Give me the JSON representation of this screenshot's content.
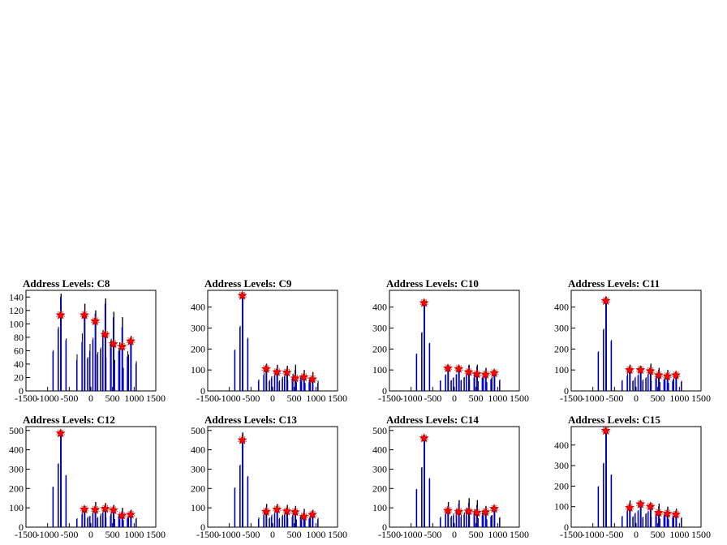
{
  "colors": {
    "background": "#ffffff",
    "raw": "#000000",
    "fit": "#0000ff",
    "peak": "#ff0000"
  },
  "chart_data": [
    {
      "type": "bar",
      "title": "Address Levels: C8",
      "xlim": [
        -1500,
        1500
      ],
      "ylim": [
        0,
        150
      ],
      "xticks": [
        "-1500",
        "-1000",
        "-500",
        "0",
        "500",
        "1000",
        "1500"
      ],
      "yticks": [
        "0",
        "20",
        "40",
        "60",
        "80",
        "100",
        "120",
        "140"
      ],
      "ytick_values": [
        0,
        20,
        40,
        60,
        80,
        100,
        120,
        140
      ],
      "series": [
        {
          "x": [
            -700,
            -150,
            100,
            330,
            520,
            720,
            920
          ],
          "values": [
            145,
            130,
            120,
            138,
            118,
            110,
            82
          ]
        },
        {
          "x": [
            -700,
            -150,
            100,
            330,
            520,
            720,
            920
          ],
          "values": [
            140,
            110,
            115,
            130,
            110,
            95,
            75
          ]
        }
      ],
      "peaks": {
        "x": [
          -700,
          -150,
          100,
          330,
          520,
          720,
          920
        ],
        "y": [
          113,
          113,
          104,
          84,
          70,
          66,
          74
        ]
      }
    },
    {
      "type": "bar",
      "title": "Address Levels: C9",
      "xlim": [
        -1500,
        1500
      ],
      "ylim": [
        0,
        480
      ],
      "xticks": [
        "-1500",
        "-1000",
        "-500",
        "0",
        "500",
        "1000",
        "1500"
      ],
      "yticks": [
        "0",
        "100",
        "200",
        "300",
        "400"
      ],
      "ytick_values": [
        0,
        100,
        200,
        300,
        400
      ],
      "series": [
        {
          "x": [
            -700,
            -150,
            100,
            330,
            520,
            720,
            920
          ],
          "values": [
            470,
            130,
            125,
            120,
            125,
            100,
            90
          ]
        },
        {
          "x": [
            -700,
            -150,
            100,
            330,
            520,
            720,
            920
          ],
          "values": [
            460,
            115,
            110,
            105,
            100,
            80,
            70
          ]
        }
      ],
      "peaks": {
        "x": [
          -700,
          -150,
          100,
          330,
          520,
          720,
          920
        ],
        "y": [
          455,
          105,
          90,
          88,
          60,
          66,
          56
        ]
      }
    },
    {
      "type": "bar",
      "title": "Address Levels: C10",
      "xlim": [
        -1500,
        1500
      ],
      "ylim": [
        0,
        480
      ],
      "xticks": [
        "-1500",
        "-1000",
        "-500",
        "0",
        "500",
        "1000",
        "1500"
      ],
      "yticks": [
        "0",
        "100",
        "200",
        "300",
        "400"
      ],
      "ytick_values": [
        0,
        100,
        200,
        300,
        400
      ],
      "series": [
        {
          "x": [
            -700,
            -150,
            100,
            330,
            520,
            720,
            920
          ],
          "values": [
            425,
            120,
            122,
            125,
            125,
            110,
            100
          ]
        },
        {
          "x": [
            -700,
            -150,
            100,
            330,
            520,
            720,
            920
          ],
          "values": [
            420,
            115,
            118,
            120,
            115,
            100,
            92
          ]
        }
      ],
      "peaks": {
        "x": [
          -700,
          -150,
          100,
          330,
          520,
          720,
          920
        ],
        "y": [
          420,
          108,
          105,
          90,
          80,
          78,
          85
        ]
      }
    },
    {
      "type": "bar",
      "title": "Address Levels: C11",
      "xlim": [
        -1500,
        1500
      ],
      "ylim": [
        0,
        480
      ],
      "xticks": [
        "-1500",
        "-1000",
        "-500",
        "0",
        "500",
        "1000",
        "1500"
      ],
      "yticks": [
        "0",
        "100",
        "200",
        "300",
        "400"
      ],
      "ytick_values": [
        0,
        100,
        200,
        300,
        400
      ],
      "series": [
        {
          "x": [
            -700,
            -150,
            100,
            330,
            520,
            720,
            920
          ],
          "values": [
            450,
            125,
            120,
            130,
            110,
            100,
            90
          ]
        },
        {
          "x": [
            -700,
            -150,
            100,
            330,
            520,
            720,
            920
          ],
          "values": [
            440,
            110,
            112,
            115,
            100,
            85,
            80
          ]
        }
      ],
      "peaks": {
        "x": [
          -700,
          -150,
          100,
          330,
          520,
          720,
          920
        ],
        "y": [
          430,
          100,
          100,
          95,
          75,
          70,
          75
        ]
      }
    },
    {
      "type": "bar",
      "title": "Address Levels: C12",
      "xlim": [
        -1500,
        1500
      ],
      "ylim": [
        0,
        520
      ],
      "xticks": [
        "-1500",
        "-1000",
        "-500",
        "0",
        "500",
        "1000",
        "1500"
      ],
      "yticks": [
        "0",
        "100",
        "200",
        "300",
        "400",
        "500"
      ],
      "ytick_values": [
        0,
        100,
        200,
        300,
        400,
        500
      ],
      "series": [
        {
          "x": [
            -700,
            -150,
            100,
            330,
            520,
            720,
            920
          ],
          "values": [
            500,
            110,
            130,
            125,
            115,
            100,
            90
          ]
        },
        {
          "x": [
            -700,
            -150,
            100,
            330,
            520,
            720,
            920
          ],
          "values": [
            495,
            100,
            110,
            110,
            100,
            85,
            80
          ]
        }
      ],
      "peaks": {
        "x": [
          -700,
          -150,
          100,
          330,
          520,
          720,
          920
        ],
        "y": [
          485,
          92,
          90,
          95,
          88,
          60,
          65
        ]
      }
    },
    {
      "type": "bar",
      "title": "Address Levels: C13",
      "xlim": [
        -1500,
        1500
      ],
      "ylim": [
        0,
        520
      ],
      "xticks": [
        "-1500",
        "-1000",
        "-500",
        "0",
        "500",
        "1000",
        "1500"
      ],
      "yticks": [
        "0",
        "100",
        "200",
        "300",
        "400",
        "500"
      ],
      "ytick_values": [
        0,
        100,
        200,
        300,
        400,
        500
      ],
      "series": [
        {
          "x": [
            -700,
            -150,
            100,
            330,
            520,
            720,
            920
          ],
          "values": [
            490,
            120,
            120,
            115,
            110,
            95,
            90
          ]
        },
        {
          "x": [
            -700,
            -150,
            100,
            330,
            520,
            720,
            920
          ],
          "values": [
            480,
            100,
            105,
            100,
            95,
            80,
            75
          ]
        }
      ],
      "peaks": {
        "x": [
          -700,
          -150,
          100,
          330,
          520,
          720,
          920
        ],
        "y": [
          450,
          80,
          92,
          82,
          78,
          55,
          65
        ]
      }
    },
    {
      "type": "bar",
      "title": "Address Levels: C14",
      "xlim": [
        -1500,
        1500
      ],
      "ylim": [
        0,
        520
      ],
      "xticks": [
        "-1500",
        "-1000",
        "-500",
        "0",
        "500",
        "1000",
        "1500"
      ],
      "yticks": [
        "0",
        "100",
        "200",
        "300",
        "400",
        "500"
      ],
      "ytick_values": [
        0,
        100,
        200,
        300,
        400,
        500
      ],
      "series": [
        {
          "x": [
            -700,
            -150,
            100,
            330,
            520,
            720,
            920
          ],
          "values": [
            470,
            130,
            140,
            150,
            140,
            110,
            95
          ]
        },
        {
          "x": [
            -700,
            -150,
            100,
            330,
            520,
            720,
            920
          ],
          "values": [
            465,
            110,
            120,
            125,
            115,
            100,
            90
          ]
        }
      ],
      "peaks": {
        "x": [
          -700,
          -150,
          100,
          330,
          520,
          720,
          920
        ],
        "y": [
          460,
          85,
          80,
          82,
          75,
          78,
          95
        ]
      }
    },
    {
      "type": "bar",
      "title": "Address Levels: C15",
      "xlim": [
        -1500,
        1500
      ],
      "ylim": [
        0,
        490
      ],
      "xticks": [
        "-1500",
        "-1000",
        "-500",
        "0",
        "500",
        "1000",
        "1500"
      ],
      "yticks": [
        "0",
        "100",
        "200",
        "300",
        "400"
      ],
      "ytick_values": [
        0,
        100,
        200,
        300,
        400
      ],
      "series": [
        {
          "x": [
            -700,
            -150,
            100,
            330,
            520,
            720,
            920
          ],
          "values": [
            475,
            130,
            125,
            120,
            115,
            100,
            90
          ]
        },
        {
          "x": [
            -700,
            -150,
            100,
            330,
            520,
            720,
            920
          ],
          "values": [
            470,
            120,
            118,
            110,
            100,
            88,
            80
          ]
        }
      ],
      "peaks": {
        "x": [
          -700,
          -150,
          100,
          330,
          520,
          720,
          920
        ],
        "y": [
          470,
          95,
          112,
          100,
          70,
          66,
          62
        ]
      }
    }
  ]
}
